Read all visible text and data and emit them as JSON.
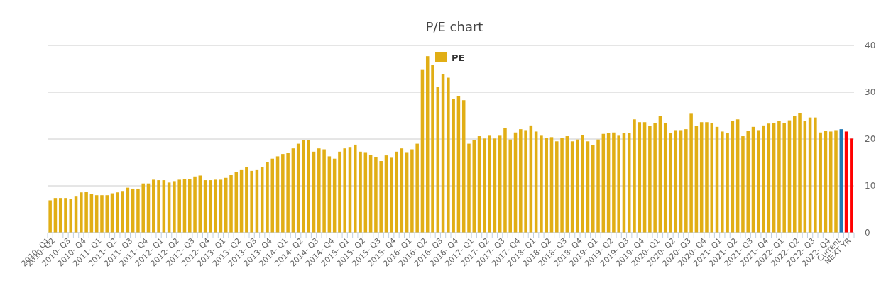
{
  "chart_data": {
    "type": "bar",
    "title": "P/E chart",
    "categories": [
      "2010- Q1",
      "2010- Q2",
      null,
      null,
      "2010- Q3",
      null,
      null,
      "2010- Q4",
      null,
      null,
      "2011- Q1",
      null,
      null,
      "2011- Q2",
      null,
      null,
      "2011- Q3",
      null,
      null,
      "2011- Q4",
      null,
      null,
      "2012- Q1",
      null,
      null,
      "2012- Q2",
      null,
      null,
      "2012- Q3",
      null,
      null,
      "2012- Q4",
      null,
      null,
      "2013- Q1",
      null,
      null,
      "2013- Q2",
      null,
      null,
      "2013- Q3",
      null,
      null,
      "2013- Q4",
      null,
      null,
      "2014- Q1",
      null,
      null,
      "2014- Q2",
      null,
      null,
      "2014- Q3",
      null,
      null,
      "2014- Q4",
      null,
      null,
      "2015- Q1",
      null,
      null,
      "2015- Q2",
      null,
      null,
      "2015- Q3",
      null,
      null,
      "2015- Q4",
      null,
      null,
      "2016- Q1",
      null,
      null,
      "2016- Q2",
      null,
      null,
      "2016- Q3",
      null,
      null,
      "2016- Q4",
      null,
      null,
      "2017- Q1",
      null,
      null,
      "2017- Q2",
      null,
      null,
      "2017- Q3",
      null,
      null,
      "2017- Q4",
      null,
      null,
      "2018- Q1",
      null,
      null,
      "2018- Q2",
      null,
      null,
      "2018- Q3",
      null,
      null,
      "2018- Q4",
      null,
      null,
      "2019- Q1",
      null,
      null,
      "2019- Q2",
      null,
      null,
      "2019- Q3",
      null,
      null,
      "2019- Q4",
      null,
      null,
      "2020- Q1",
      null,
      null,
      "2020- Q2",
      null,
      null,
      "2020- Q3",
      null,
      null,
      "2020- Q4",
      null,
      null,
      "2021- Q1",
      null,
      null,
      "2021- Q2",
      null,
      null,
      "2021- Q3",
      null,
      null,
      "2021- Q4",
      null,
      null,
      "2022- Q1",
      null,
      null,
      "2022- Q2",
      null,
      null,
      "2022- Q3",
      null,
      null,
      "2022- Q4",
      null,
      "Current",
      null,
      "NEXT YR"
    ],
    "series": [
      {
        "name": "PE",
        "color": "#e1ae15",
        "values": [
          6.9,
          7.4,
          7.4,
          7.4,
          7.2,
          7.7,
          8.6,
          8.7,
          8.2,
          8.0,
          8.0,
          8.0,
          8.4,
          8.6,
          8.9,
          9.6,
          9.4,
          9.4,
          10.5,
          10.5,
          11.3,
          11.2,
          11.2,
          10.7,
          11.0,
          11.3,
          11.5,
          11.5,
          12.0,
          12.2,
          11.2,
          11.2,
          11.3,
          11.3,
          11.7,
          12.3,
          12.9,
          13.5,
          14.0,
          13.2,
          13.5,
          14.0,
          15.1,
          15.8,
          16.3,
          16.8,
          17.1,
          18.0,
          19.0,
          19.7,
          19.7,
          17.3,
          18.0,
          17.8,
          16.3,
          15.8,
          17.3,
          18.0,
          18.3,
          18.8,
          17.3,
          17.2,
          16.6,
          16.2,
          15.3,
          16.5,
          16.0,
          17.3,
          18.0,
          17.2,
          17.8,
          19.0,
          34.9,
          37.7,
          35.9,
          31.1,
          33.9,
          33.1,
          28.6,
          29.1,
          28.3,
          19.0,
          19.7,
          20.6,
          20.1,
          20.7,
          20.1,
          20.7,
          22.3,
          19.9,
          21.4,
          22.1,
          21.9,
          22.9,
          21.6,
          20.7,
          20.2,
          20.4,
          19.5,
          20.2,
          20.6,
          19.5,
          19.9,
          20.9,
          19.5,
          18.7,
          19.9,
          21.1,
          21.3,
          21.4,
          20.7,
          21.3,
          21.3,
          24.2,
          23.6,
          23.6,
          22.8,
          23.4,
          25.0,
          23.4,
          21.3,
          21.9,
          21.9,
          22.1,
          25.4,
          22.8,
          23.6,
          23.6,
          23.4,
          22.6,
          21.6,
          21.3,
          23.8,
          24.2,
          20.6,
          21.8,
          22.6,
          21.9,
          22.9,
          23.3,
          23.4,
          23.8,
          23.4,
          24.0,
          25.0,
          25.5,
          23.8,
          24.6,
          24.6,
          21.4,
          21.8,
          21.6,
          21.9,
          22.1,
          21.6,
          20.1
        ],
        "colors": [
          "#e1ae15",
          "#e1ae15",
          "#e1ae15",
          "#e1ae15",
          "#e1ae15",
          "#e1ae15",
          "#e1ae15",
          "#e1ae15",
          "#e1ae15",
          "#e1ae15",
          "#e1ae15",
          "#e1ae15",
          "#e1ae15",
          "#e1ae15",
          "#e1ae15",
          "#e1ae15",
          "#e1ae15",
          "#e1ae15",
          "#e1ae15",
          "#e1ae15",
          "#e1ae15",
          "#e1ae15",
          "#e1ae15",
          "#e1ae15",
          "#e1ae15",
          "#e1ae15",
          "#e1ae15",
          "#e1ae15",
          "#e1ae15",
          "#e1ae15",
          "#e1ae15",
          "#e1ae15",
          "#e1ae15",
          "#e1ae15",
          "#e1ae15",
          "#e1ae15",
          "#e1ae15",
          "#e1ae15",
          "#e1ae15",
          "#e1ae15",
          "#e1ae15",
          "#e1ae15",
          "#e1ae15",
          "#e1ae15",
          "#e1ae15",
          "#e1ae15",
          "#e1ae15",
          "#e1ae15",
          "#e1ae15",
          "#e1ae15",
          "#e1ae15",
          "#e1ae15",
          "#e1ae15",
          "#e1ae15",
          "#e1ae15",
          "#e1ae15",
          "#e1ae15",
          "#e1ae15",
          "#e1ae15",
          "#e1ae15",
          "#e1ae15",
          "#e1ae15",
          "#e1ae15",
          "#e1ae15",
          "#e1ae15",
          "#e1ae15",
          "#e1ae15",
          "#e1ae15",
          "#e1ae15",
          "#e1ae15",
          "#e1ae15",
          "#e1ae15",
          "#e1ae15",
          "#e1ae15",
          "#e1ae15",
          "#e1ae15",
          "#e1ae15",
          "#e1ae15",
          "#e1ae15",
          "#e1ae15",
          "#e1ae15",
          "#e1ae15",
          "#e1ae15",
          "#e1ae15",
          "#e1ae15",
          "#e1ae15",
          "#e1ae15",
          "#e1ae15",
          "#e1ae15",
          "#e1ae15",
          "#e1ae15",
          "#e1ae15",
          "#e1ae15",
          "#e1ae15",
          "#e1ae15",
          "#e1ae15",
          "#e1ae15",
          "#e1ae15",
          "#e1ae15",
          "#e1ae15",
          "#e1ae15",
          "#e1ae15",
          "#e1ae15",
          "#e1ae15",
          "#e1ae15",
          "#e1ae15",
          "#e1ae15",
          "#e1ae15",
          "#e1ae15",
          "#e1ae15",
          "#e1ae15",
          "#e1ae15",
          "#e1ae15",
          "#e1ae15",
          "#e1ae15",
          "#e1ae15",
          "#e1ae15",
          "#e1ae15",
          "#e1ae15",
          "#e1ae15",
          "#e1ae15",
          "#e1ae15",
          "#e1ae15",
          "#e1ae15",
          "#e1ae15",
          "#e1ae15",
          "#e1ae15",
          "#e1ae15",
          "#e1ae15",
          "#e1ae15",
          "#e1ae15",
          "#e1ae15",
          "#e1ae15",
          "#e1ae15",
          "#e1ae15",
          "#e1ae15",
          "#e1ae15",
          "#e1ae15",
          "#e1ae15",
          "#e1ae15",
          "#e1ae15",
          "#e1ae15",
          "#e1ae15",
          "#e1ae15",
          "#e1ae15",
          "#e1ae15",
          "#e1ae15",
          "#e1ae15",
          "#e1ae15",
          "#e1ae15",
          "#e1ae15",
          "#e1ae15",
          "#e1ae15",
          "#1f77b4",
          "#ff0000",
          "#ff0000"
        ]
      }
    ],
    "ylim": [
      0,
      40
    ],
    "yticks": [
      0,
      10,
      20,
      30,
      40
    ],
    "grid": "y",
    "legend": "top"
  }
}
